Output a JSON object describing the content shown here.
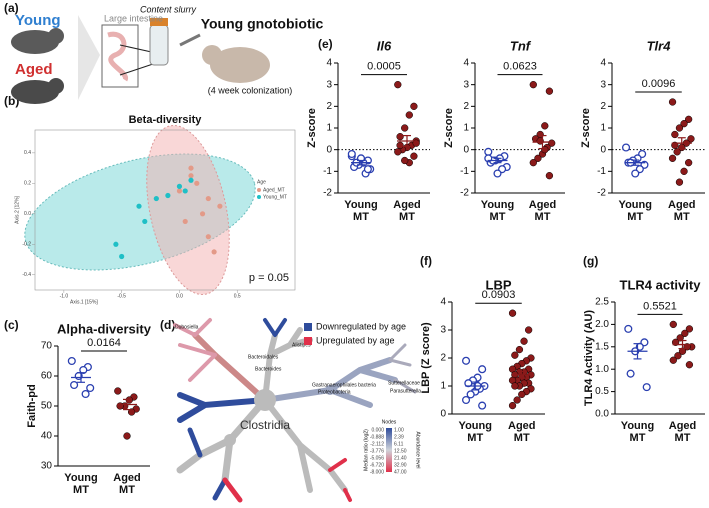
{
  "panel_labels": [
    "(a)",
    "(b)",
    "(c)",
    "(d)",
    "(e)",
    "(f)",
    "(g)"
  ],
  "illustration": {
    "young": "Young",
    "aged": "Aged",
    "intestine": "Large intestine",
    "slurry": "Content slurry",
    "recipient": "Young gnotobiotic",
    "duration": "(4 week colonization)"
  },
  "heat_tree": {
    "legend": [
      "Downregulated by age",
      "Upregulated by age"
    ],
    "legend_colors": [
      "#2f4c9c",
      "#e0304a"
    ],
    "labels": [
      "Dubosiella",
      "Bacteroidales",
      "Bacteroides",
      "Alistipes",
      "Gastranaerophilales bacteria",
      "Proteobacteria",
      "Sutterellaceae",
      "Parasutterella",
      "Clostridia"
    ],
    "colorbar_title": "Nodes",
    "ratio_scale": [
      "0.000",
      "-0.888",
      "-2.112",
      "-3.776",
      "-5.056",
      "-6.720",
      "-8.000"
    ],
    "node_scale": [
      "1.00",
      "2.39",
      "6.11",
      "12.50",
      "21.40",
      "32.90",
      "47.00"
    ],
    "ratio_label": "Median ratio (log2)",
    "abundance_label": "Abundance level"
  },
  "chart_data": [
    {
      "type": "scatter",
      "title": "Beta-diversity",
      "xlabel": "Axis.1 [15%]",
      "ylabel": "Axis.2 [12%]",
      "legend_title": "Age",
      "annotation": "p = 0.05",
      "xlim": [
        -1.25,
        1.0
      ],
      "ylim": [
        -0.5,
        0.55
      ],
      "xticks": [
        {
          "value": -1,
          "label": "-1.0"
        },
        -0.5,
        {
          "value": 0,
          "label": "0.0"
        },
        0.5
      ],
      "yticks": [
        -0.4,
        -0.2,
        {
          "value": 0,
          "label": "0.0"
        },
        0.2,
        0.4
      ],
      "series": [
        {
          "name": "Aged_MT",
          "color": "#e39a88",
          "x": [
            0.0,
            0.05,
            0.1,
            0.15,
            0.2,
            0.25,
            0.25,
            0.3,
            0.35,
            0.1
          ],
          "y": [
            0.15,
            -0.05,
            0.3,
            0.2,
            0.0,
            -0.15,
            0.1,
            -0.25,
            0.05,
            0.25
          ]
        },
        {
          "name": "Young_MT",
          "color": "#1fbfc6",
          "x": [
            -0.55,
            -0.5,
            -0.35,
            -0.3,
            -0.2,
            -0.1,
            0.0,
            0.1,
            0.05
          ],
          "y": [
            -0.2,
            -0.28,
            0.05,
            -0.05,
            0.1,
            0.12,
            0.18,
            0.22,
            0.15
          ]
        }
      ]
    },
    {
      "type": "dotplot",
      "title": "Alpha-diversity",
      "ylabel": "Faith-pd",
      "p_value": "0.0164",
      "categories": [
        [
          "Young",
          "MT"
        ],
        [
          "Aged",
          "MT"
        ]
      ],
      "colors": [
        "#2a3fb0",
        "#8b1a1a"
      ],
      "filled": [
        false,
        true
      ],
      "values": [
        [
          65,
          63,
          62,
          60,
          57,
          56,
          54
        ],
        [
          55,
          53,
          52,
          50,
          50,
          49,
          48,
          40
        ]
      ],
      "means": [
        59.5,
        50.5
      ],
      "errors": [
        1.6,
        1.7
      ],
      "ylim": [
        30,
        70
      ],
      "yticks": [
        30,
        40,
        50,
        60,
        70
      ]
    },
    {
      "type": "dotplot",
      "title": "Il6",
      "title_italic": true,
      "ylabel": "Z-score",
      "p_value": "0.0005",
      "refline": 0,
      "categories": [
        [
          "Young",
          "MT"
        ],
        [
          "Aged",
          "MT"
        ]
      ],
      "colors": [
        "#2a3fb0",
        "#8b1a1a"
      ],
      "filled": [
        false,
        true
      ],
      "values": [
        [
          -0.3,
          -0.5,
          -0.6,
          -0.7,
          -0.8,
          -0.9,
          -1.1,
          -0.4,
          -0.6,
          -0.2,
          -0.9
        ],
        [
          3.0,
          2.0,
          1.6,
          1.0,
          0.6,
          0.4,
          0.2,
          0.1,
          0.0,
          -0.1,
          -0.3,
          -0.6,
          -0.5,
          0.2,
          0.3
        ]
      ],
      "means": [
        -0.6,
        0.4
      ],
      "errors": [
        0.1,
        0.25
      ],
      "ylim": [
        -2,
        4
      ],
      "yticks": [
        -2,
        -1,
        0,
        1,
        2,
        3,
        4
      ]
    },
    {
      "type": "dotplot",
      "title": "Tnf",
      "title_italic": true,
      "ylabel": "Z-score",
      "p_value": "0.0623",
      "refline": 0,
      "categories": [
        [
          "Young",
          "MT"
        ],
        [
          "Aged",
          "MT"
        ]
      ],
      "colors": [
        "#2a3fb0",
        "#8b1a1a"
      ],
      "filled": [
        false,
        true
      ],
      "values": [
        [
          -0.1,
          -0.3,
          -0.4,
          -0.5,
          -0.6,
          -0.8,
          -0.9,
          -1.1,
          -0.5,
          -0.4
        ],
        [
          3.0,
          2.7,
          1.1,
          0.7,
          0.5,
          0.3,
          0.1,
          -0.2,
          -0.4,
          -0.6,
          -1.2,
          0.0,
          0.4
        ]
      ],
      "means": [
        -0.5,
        0.35
      ],
      "errors": [
        0.1,
        0.3
      ],
      "ylim": [
        -2,
        4
      ],
      "yticks": [
        -2,
        -1,
        0,
        1,
        2,
        3,
        4
      ]
    },
    {
      "type": "dotplot",
      "title": "Tlr4",
      "title_italic": true,
      "ylabel": "Z-score",
      "p_value": "0.0096",
      "refline": 0,
      "categories": [
        [
          "Young",
          "MT"
        ],
        [
          "Aged",
          "MT"
        ]
      ],
      "colors": [
        "#2a3fb0",
        "#8b1a1a"
      ],
      "filled": [
        false,
        true
      ],
      "values": [
        [
          0.1,
          -0.2,
          -0.4,
          -0.5,
          -0.6,
          -0.7,
          -0.9,
          -1.1,
          -0.6
        ],
        [
          2.2,
          1.4,
          1.2,
          1.0,
          0.7,
          0.5,
          0.3,
          0.1,
          -0.1,
          -0.4,
          -0.6,
          -1.0,
          -1.5,
          0.2
        ]
      ],
      "means": [
        -0.6,
        0.3
      ],
      "errors": [
        0.12,
        0.25
      ],
      "ylim": [
        -2,
        4
      ],
      "yticks": [
        -2,
        -1,
        0,
        1,
        2,
        3,
        4
      ]
    },
    {
      "type": "dotplot",
      "title": "LBP",
      "ylabel": "LBP (Z score)",
      "p_value": "0.0903",
      "categories": [
        [
          "Young",
          "MT"
        ],
        [
          "Aged",
          "MT"
        ]
      ],
      "colors": [
        "#2a3fb0",
        "#8b1a1a"
      ],
      "filled": [
        false,
        true
      ],
      "values": [
        [
          1.9,
          1.6,
          1.3,
          1.2,
          1.1,
          1.0,
          0.9,
          0.8,
          0.7,
          0.5,
          0.3,
          1.0
        ],
        [
          3.6,
          3.0,
          2.6,
          2.3,
          2.1,
          2.0,
          1.9,
          1.8,
          1.7,
          1.6,
          1.6,
          1.5,
          1.5,
          1.4,
          1.4,
          1.3,
          1.3,
          1.2,
          1.2,
          1.1,
          1.1,
          1.0,
          1.0,
          0.9,
          0.8,
          0.7,
          0.5,
          0.3
        ]
      ],
      "means": [
        1.0,
        1.4
      ],
      "errors": [
        0.14,
        0.12
      ],
      "ylim": [
        0,
        4
      ],
      "yticks": [
        0,
        1,
        2,
        3,
        4
      ]
    },
    {
      "type": "dotplot",
      "title": "TLR4 activity",
      "ylabel": "TLR4 Activity (AU)",
      "p_value": "0.5521",
      "categories": [
        [
          "Young",
          "MT"
        ],
        [
          "Aged",
          "MT"
        ]
      ],
      "colors": [
        "#2a3fb0",
        "#8b1a1a"
      ],
      "filled": [
        false,
        true
      ],
      "values": [
        [
          1.9,
          1.6,
          1.5,
          1.4,
          0.9,
          0.6
        ],
        [
          2.0,
          1.9,
          1.8,
          1.7,
          1.6,
          1.5,
          1.5,
          1.4,
          1.3,
          1.2,
          1.1
        ]
      ],
      "means": [
        1.4,
        1.55
      ],
      "errors": [
        0.17,
        0.09
      ],
      "ylim": [
        0,
        2.5
      ],
      "yticks": [
        {
          "value": 0,
          "label": "0.0"
        },
        0.5,
        {
          "value": 1,
          "label": "1.0"
        },
        1.5,
        {
          "value": 2,
          "label": "2.0"
        },
        2.5
      ]
    }
  ]
}
